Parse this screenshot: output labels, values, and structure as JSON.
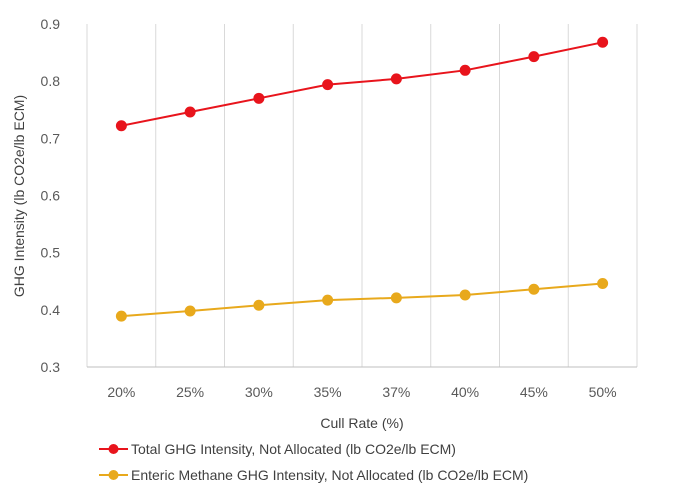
{
  "chart_data": {
    "type": "line",
    "categories": [
      "20%",
      "25%",
      "30%",
      "35%",
      "37%",
      "40%",
      "45%",
      "50%"
    ],
    "series": [
      {
        "name": "Total GHG Intensity, Not Allocated (lb CO2e/lb ECM)",
        "color": "#e8141c",
        "values": [
          0.722,
          0.746,
          0.77,
          0.794,
          0.804,
          0.819,
          0.843,
          0.868
        ]
      },
      {
        "name": "Enteric Methane GHG Intensity, Not Allocated (lb CO2e/lb ECM)",
        "color": "#e8a91c",
        "values": [
          0.389,
          0.398,
          0.408,
          0.417,
          0.421,
          0.426,
          0.436,
          0.446
        ]
      }
    ],
    "xlabel": "Cull Rate (%)",
    "ylabel": "GHG Intensity (lb CO2e/lb ECM)",
    "ylim": [
      0.3,
      0.9
    ],
    "yticks": [
      "0.3",
      "0.4",
      "0.5",
      "0.6",
      "0.7",
      "0.8",
      "0.9"
    ],
    "grid": "vertical",
    "legend_position": "bottom-left"
  }
}
